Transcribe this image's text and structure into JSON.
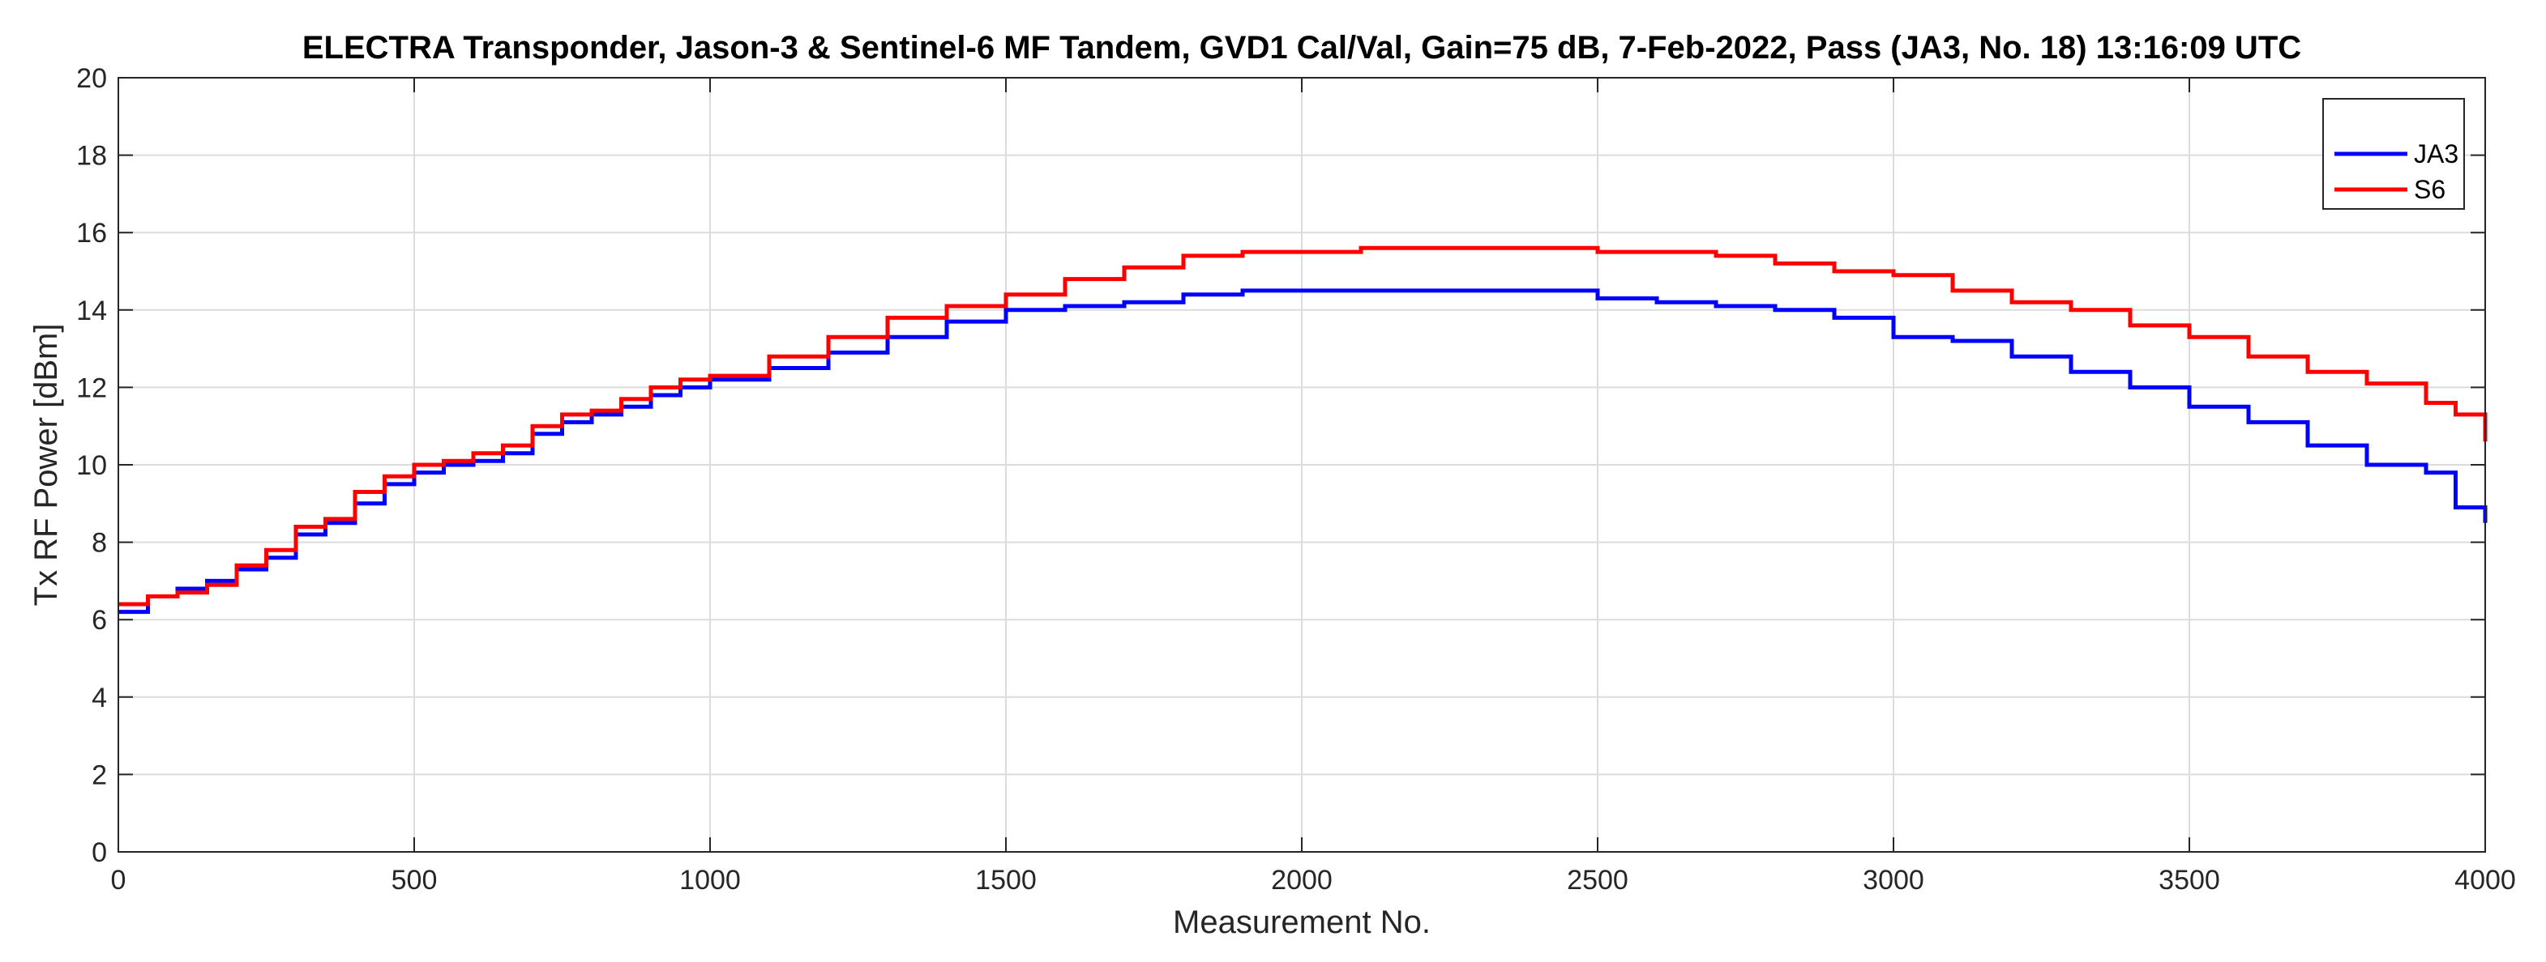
{
  "chart_data": {
    "type": "line",
    "title": "ELECTRA Transponder, Jason-3 & Sentinel-6 MF Tandem, GVD1 Cal/Val, Gain=75 dB, 7-Feb-2022, Pass (JA3, No. 18) 13:16:09 UTC",
    "xlabel": "Measurement No.",
    "ylabel": "Tx RF Power [dBm]",
    "xlim": [
      0,
      4000
    ],
    "ylim": [
      0,
      20
    ],
    "xticks": [
      0,
      500,
      1000,
      1500,
      2000,
      2500,
      3000,
      3500,
      4000
    ],
    "yticks": [
      0,
      2,
      4,
      6,
      8,
      10,
      12,
      14,
      16,
      18,
      20
    ],
    "grid": true,
    "legend_position": "top-right",
    "series": [
      {
        "name": "JA3",
        "color": "#0000ff",
        "x": [
          0,
          50,
          100,
          150,
          200,
          250,
          300,
          350,
          400,
          450,
          500,
          550,
          600,
          650,
          700,
          750,
          800,
          850,
          900,
          950,
          1000,
          1100,
          1200,
          1300,
          1400,
          1500,
          1600,
          1700,
          1800,
          1900,
          2000,
          2100,
          2200,
          2300,
          2400,
          2500,
          2600,
          2700,
          2800,
          2900,
          3000,
          3100,
          3200,
          3300,
          3400,
          3500,
          3600,
          3700,
          3800,
          3900,
          3950,
          4000
        ],
        "values": [
          6.2,
          6.6,
          6.8,
          7.0,
          7.3,
          7.6,
          8.2,
          8.5,
          9.0,
          9.5,
          9.8,
          10.0,
          10.1,
          10.3,
          10.8,
          11.1,
          11.3,
          11.5,
          11.8,
          12.0,
          12.2,
          12.5,
          12.9,
          13.3,
          13.7,
          14.0,
          14.1,
          14.2,
          14.4,
          14.5,
          14.5,
          14.5,
          14.5,
          14.5,
          14.5,
          14.3,
          14.2,
          14.1,
          14.0,
          13.8,
          13.3,
          13.2,
          12.8,
          12.4,
          12.0,
          11.5,
          11.1,
          10.5,
          10.0,
          9.8,
          8.9,
          8.5
        ]
      },
      {
        "name": "S6",
        "color": "#ff0000",
        "x": [
          0,
          50,
          100,
          150,
          200,
          250,
          300,
          350,
          400,
          450,
          500,
          550,
          600,
          650,
          700,
          750,
          800,
          850,
          900,
          950,
          1000,
          1100,
          1200,
          1300,
          1400,
          1500,
          1600,
          1700,
          1800,
          1900,
          2000,
          2100,
          2200,
          2300,
          2400,
          2500,
          2600,
          2700,
          2800,
          2900,
          3000,
          3100,
          3200,
          3300,
          3400,
          3500,
          3600,
          3700,
          3800,
          3900,
          3950,
          4000
        ],
        "values": [
          6.4,
          6.6,
          6.7,
          6.9,
          7.4,
          7.8,
          8.4,
          8.6,
          9.3,
          9.7,
          10.0,
          10.1,
          10.3,
          10.5,
          11.0,
          11.3,
          11.4,
          11.7,
          12.0,
          12.2,
          12.3,
          12.8,
          13.3,
          13.8,
          14.1,
          14.4,
          14.8,
          15.1,
          15.4,
          15.5,
          15.5,
          15.6,
          15.6,
          15.6,
          15.6,
          15.5,
          15.5,
          15.4,
          15.2,
          15.0,
          14.9,
          14.5,
          14.2,
          14.0,
          13.6,
          13.3,
          12.8,
          12.4,
          12.1,
          11.6,
          11.3,
          10.6
        ]
      }
    ]
  }
}
